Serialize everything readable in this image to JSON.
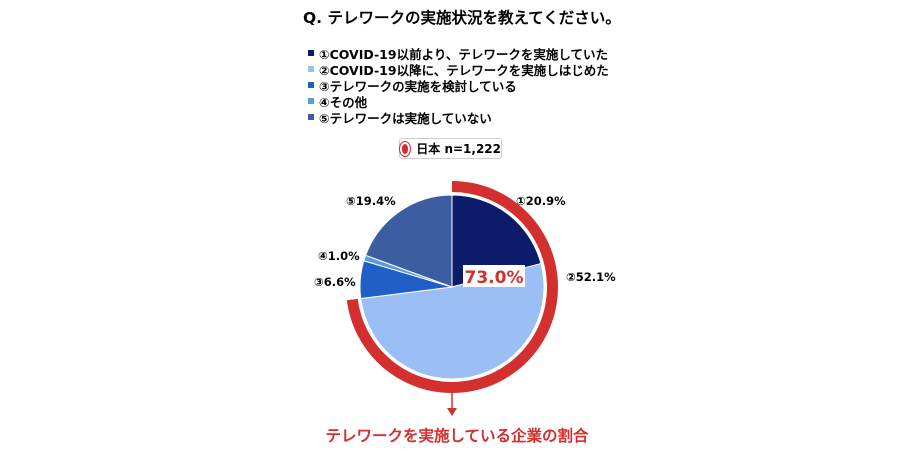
{
  "question": "Q. テレワークの実施状況を教えてください。",
  "badge": {
    "label": "日本 n=1,222",
    "icon": "japan-flag-icon"
  },
  "callout_text": "テレワークを実施している企業の割合",
  "colors": {
    "s1": "#0d1b6b",
    "s2": "#9bbff5",
    "s3": "#1f5fc6",
    "s4": "#5b9be0",
    "s5": "#3c5ea0",
    "ring": "#d32f2f"
  },
  "chart_data": {
    "type": "pie",
    "title": "Q. テレワークの実施状況を教えてください。",
    "n_label": "日本 n=1,222",
    "series": [
      {
        "name": "①COVID-19以前より、テレワークを実施していた",
        "marker": "①",
        "value": 20.9,
        "label": "①20.9%"
      },
      {
        "name": "②COVID-19以降に、テレワークを実施しはじめた",
        "marker": "②",
        "value": 52.1,
        "label": "②52.1%"
      },
      {
        "name": "③テレワークの実施を検討している",
        "marker": "③",
        "value": 6.6,
        "label": "③6.6%"
      },
      {
        "name": "④その他",
        "marker": "④",
        "value": 1.0,
        "label": "④1.0%"
      },
      {
        "name": "⑤テレワークは実施していない",
        "marker": "⑤",
        "value": 19.4,
        "label": "⑤19.4%"
      }
    ],
    "highlight": {
      "label": "73.0%",
      "value": 73.0,
      "covers": [
        "①",
        "②"
      ]
    },
    "legend_position": "top"
  }
}
